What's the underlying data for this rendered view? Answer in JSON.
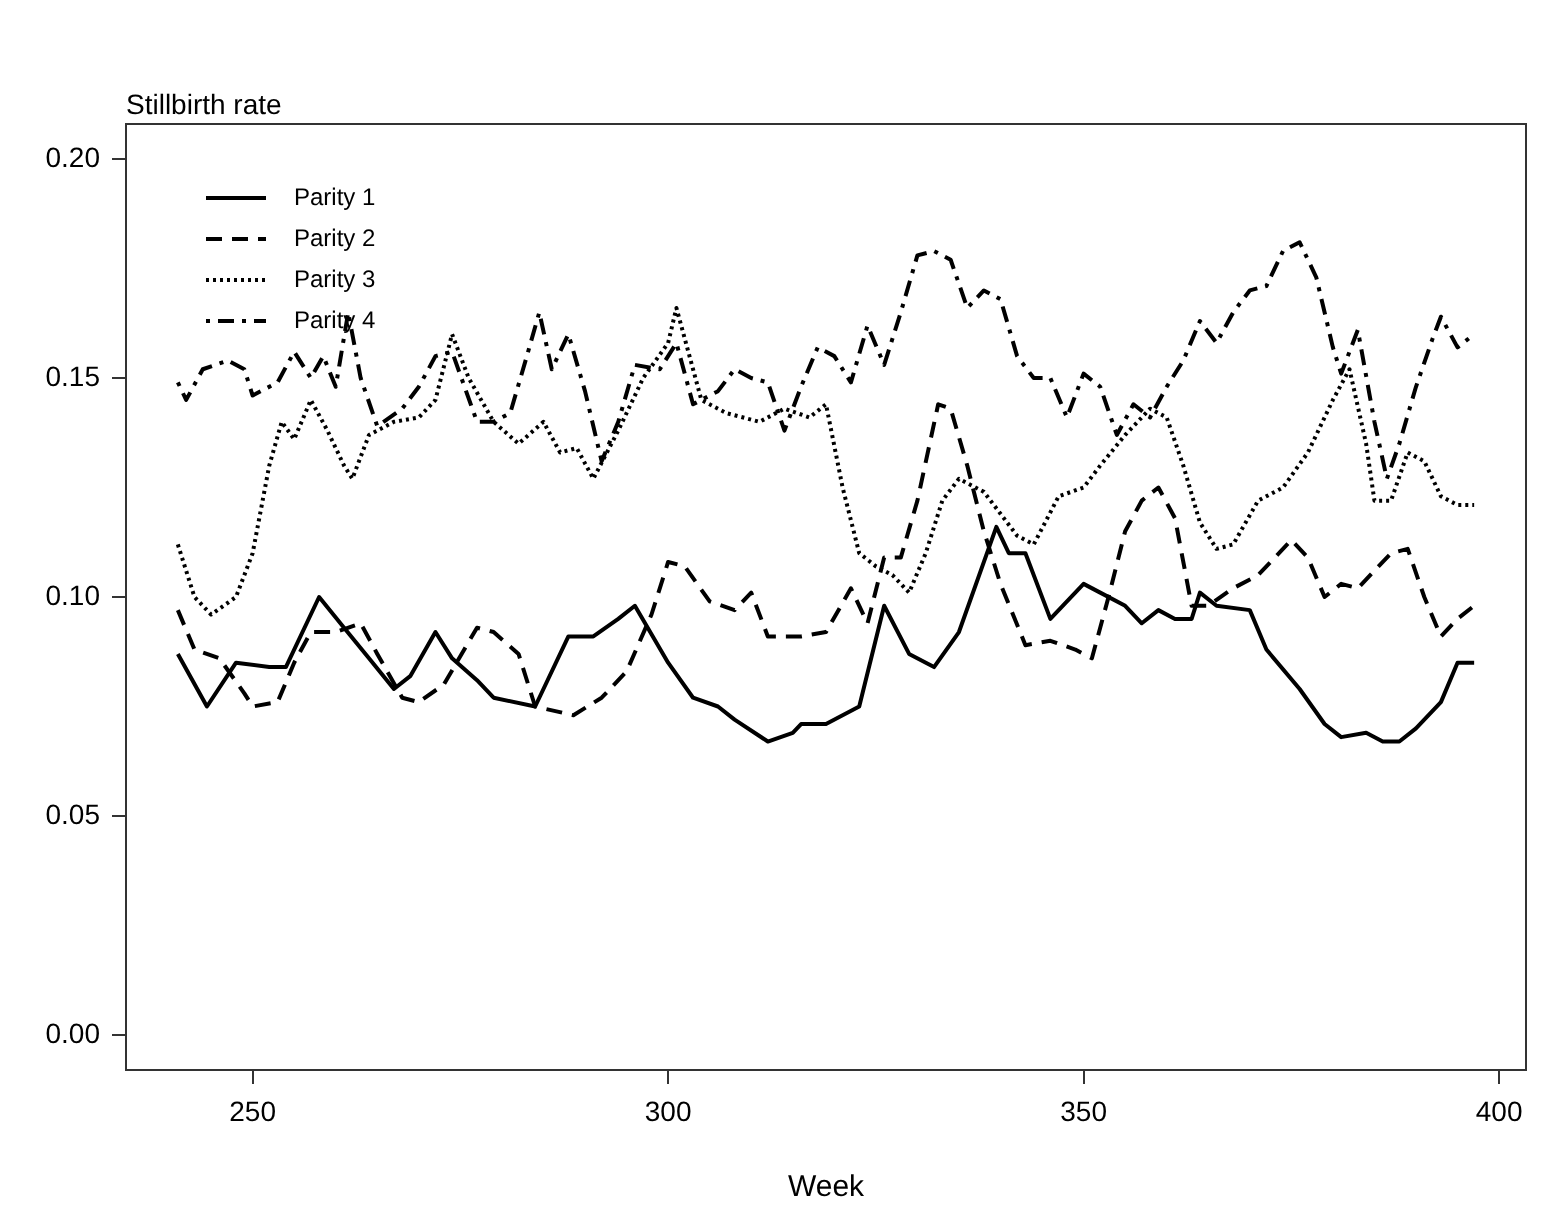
{
  "chart_data": {
    "type": "line",
    "ylabel": "Stillbirth rate",
    "xlabel": "Week",
    "xlim": [
      234.76,
      403.24
    ],
    "ylim": [
      -0.008,
      0.208
    ],
    "xticks": [
      250,
      300,
      350,
      400
    ],
    "yticks": [
      {
        "value": 0,
        "label": "0.00"
      },
      {
        "value": 0.05,
        "label": "0.05"
      },
      {
        "value": 0.1,
        "label": "0.10"
      },
      {
        "value": 0.15,
        "label": "0.15"
      },
      {
        "value": 0.2,
        "label": "0.20"
      }
    ],
    "grid": false,
    "legend": "top left",
    "marker": "none",
    "series": [
      {
        "name": "Parity 1",
        "color": "#000000",
        "line_style": "solid",
        "x": [
          241,
          244.5,
          248,
          252,
          254,
          258,
          261,
          264,
          267,
          269,
          272,
          274,
          277,
          279,
          284,
          288,
          291,
          294,
          296,
          300,
          303,
          306,
          308,
          312,
          315,
          316,
          319,
          323,
          326,
          329,
          332,
          335,
          339.5,
          341,
          343,
          346,
          350,
          352,
          355,
          357,
          359,
          361,
          363,
          364,
          366,
          370,
          372,
          376,
          379,
          381,
          384,
          386,
          388,
          390,
          393,
          395,
          397
        ],
        "values": [
          0.087,
          0.075,
          0.085,
          0.084,
          0.084,
          0.1,
          0.093,
          0.086,
          0.079,
          0.082,
          0.092,
          0.086,
          0.081,
          0.077,
          0.075,
          0.091,
          0.091,
          0.095,
          0.098,
          0.085,
          0.077,
          0.075,
          0.072,
          0.067,
          0.069,
          0.071,
          0.071,
          0.075,
          0.098,
          0.087,
          0.084,
          0.092,
          0.116,
          0.11,
          0.11,
          0.095,
          0.103,
          0.101,
          0.098,
          0.094,
          0.097,
          0.095,
          0.095,
          0.101,
          0.098,
          0.097,
          0.088,
          0.079,
          0.071,
          0.068,
          0.069,
          0.067,
          0.067,
          0.07,
          0.076,
          0.085,
          0.085
        ]
      },
      {
        "name": "Parity 2",
        "color": "#000000",
        "line_style": "dashed",
        "x": [
          241,
          243,
          246,
          249,
          250,
          253,
          255,
          257,
          260,
          263,
          265,
          268,
          270,
          273,
          277,
          279,
          282,
          284,
          288.6,
          292,
          295,
          298,
          300,
          302,
          305,
          308,
          310,
          312,
          316,
          319,
          322,
          324,
          326,
          328,
          330,
          332.5,
          334,
          336,
          338,
          340,
          343,
          346,
          349,
          351,
          353,
          355,
          357,
          359,
          361,
          363,
          365,
          368,
          371,
          375,
          377,
          379,
          381,
          383,
          387,
          389,
          391,
          393,
          395,
          397
        ],
        "values": [
          0.097,
          0.088,
          0.086,
          0.078,
          0.075,
          0.076,
          0.085,
          0.092,
          0.092,
          0.094,
          0.087,
          0.077,
          0.076,
          0.08,
          0.093,
          0.092,
          0.087,
          0.075,
          0.073,
          0.077,
          0.083,
          0.096,
          0.108,
          0.107,
          0.099,
          0.097,
          0.101,
          0.091,
          0.091,
          0.092,
          0.102,
          0.094,
          0.109,
          0.109,
          0.122,
          0.144,
          0.143,
          0.13,
          0.115,
          0.103,
          0.089,
          0.09,
          0.088,
          0.086,
          0.1,
          0.115,
          0.122,
          0.125,
          0.118,
          0.098,
          0.098,
          0.102,
          0.105,
          0.113,
          0.109,
          0.1,
          0.103,
          0.102,
          0.11,
          0.111,
          0.1,
          0.091,
          0.095,
          0.098
        ]
      },
      {
        "name": "Parity 3",
        "color": "#000000",
        "line_style": "dotted",
        "x": [
          241,
          243,
          245,
          248,
          250,
          252,
          253.5,
          255,
          257,
          259,
          261,
          262,
          264,
          267,
          270,
          272,
          274,
          276,
          279,
          282,
          285,
          287,
          289,
          291,
          294,
          297,
          300,
          301,
          304,
          307,
          311,
          314,
          317,
          319,
          321,
          323,
          325,
          327,
          329,
          331,
          333,
          335,
          338,
          340,
          342,
          344,
          347,
          350,
          352,
          355,
          358,
          360,
          362,
          364,
          366,
          368,
          371,
          374,
          377,
          380,
          382,
          384,
          385,
          387,
          389,
          391,
          393,
          395,
          397
        ],
        "values": [
          0.112,
          0.1,
          0.096,
          0.1,
          0.11,
          0.13,
          0.14,
          0.136,
          0.145,
          0.138,
          0.13,
          0.127,
          0.137,
          0.14,
          0.141,
          0.145,
          0.16,
          0.15,
          0.14,
          0.135,
          0.14,
          0.133,
          0.134,
          0.127,
          0.138,
          0.15,
          0.158,
          0.166,
          0.145,
          0.142,
          0.14,
          0.143,
          0.141,
          0.144,
          0.125,
          0.11,
          0.107,
          0.105,
          0.101,
          0.11,
          0.122,
          0.127,
          0.124,
          0.119,
          0.114,
          0.112,
          0.123,
          0.125,
          0.13,
          0.137,
          0.143,
          0.141,
          0.13,
          0.117,
          0.111,
          0.112,
          0.122,
          0.125,
          0.133,
          0.145,
          0.152,
          0.135,
          0.122,
          0.122,
          0.133,
          0.131,
          0.123,
          0.121,
          0.121
        ]
      },
      {
        "name": "Parity 4",
        "color": "#000000",
        "line_style": "dashdot",
        "x": [
          241,
          242,
          244,
          247,
          249,
          250,
          253,
          255,
          257,
          258.5,
          260,
          261.5,
          263,
          265,
          268,
          270,
          272,
          274,
          277,
          279,
          281,
          283,
          284.5,
          286,
          288,
          290,
          292,
          294,
          296,
          299,
          301,
          303,
          306,
          308,
          310,
          312,
          314,
          316,
          318,
          320,
          322,
          324,
          326,
          328,
          330,
          332,
          334,
          336,
          338,
          340,
          342,
          344,
          346,
          348,
          350,
          352,
          354,
          356,
          358,
          360,
          362,
          364,
          366,
          368,
          370,
          372,
          374,
          376,
          378,
          380,
          381,
          383,
          385,
          386.5,
          388,
          390,
          392,
          393,
          395,
          397
        ],
        "values": [
          0.149,
          0.145,
          0.152,
          0.154,
          0.152,
          0.146,
          0.149,
          0.156,
          0.15,
          0.155,
          0.148,
          0.165,
          0.15,
          0.139,
          0.143,
          0.148,
          0.155,
          0.156,
          0.14,
          0.14,
          0.142,
          0.155,
          0.165,
          0.152,
          0.16,
          0.147,
          0.131,
          0.14,
          0.153,
          0.152,
          0.158,
          0.144,
          0.147,
          0.152,
          0.15,
          0.149,
          0.138,
          0.148,
          0.157,
          0.155,
          0.149,
          0.162,
          0.153,
          0.165,
          0.178,
          0.179,
          0.177,
          0.166,
          0.17,
          0.168,
          0.155,
          0.15,
          0.15,
          0.141,
          0.151,
          0.148,
          0.137,
          0.144,
          0.141,
          0.148,
          0.154,
          0.163,
          0.158,
          0.165,
          0.17,
          0.171,
          0.179,
          0.181,
          0.173,
          0.157,
          0.151,
          0.161,
          0.14,
          0.127,
          0.135,
          0.148,
          0.159,
          0.164,
          0.157,
          0.16
        ]
      }
    ]
  }
}
